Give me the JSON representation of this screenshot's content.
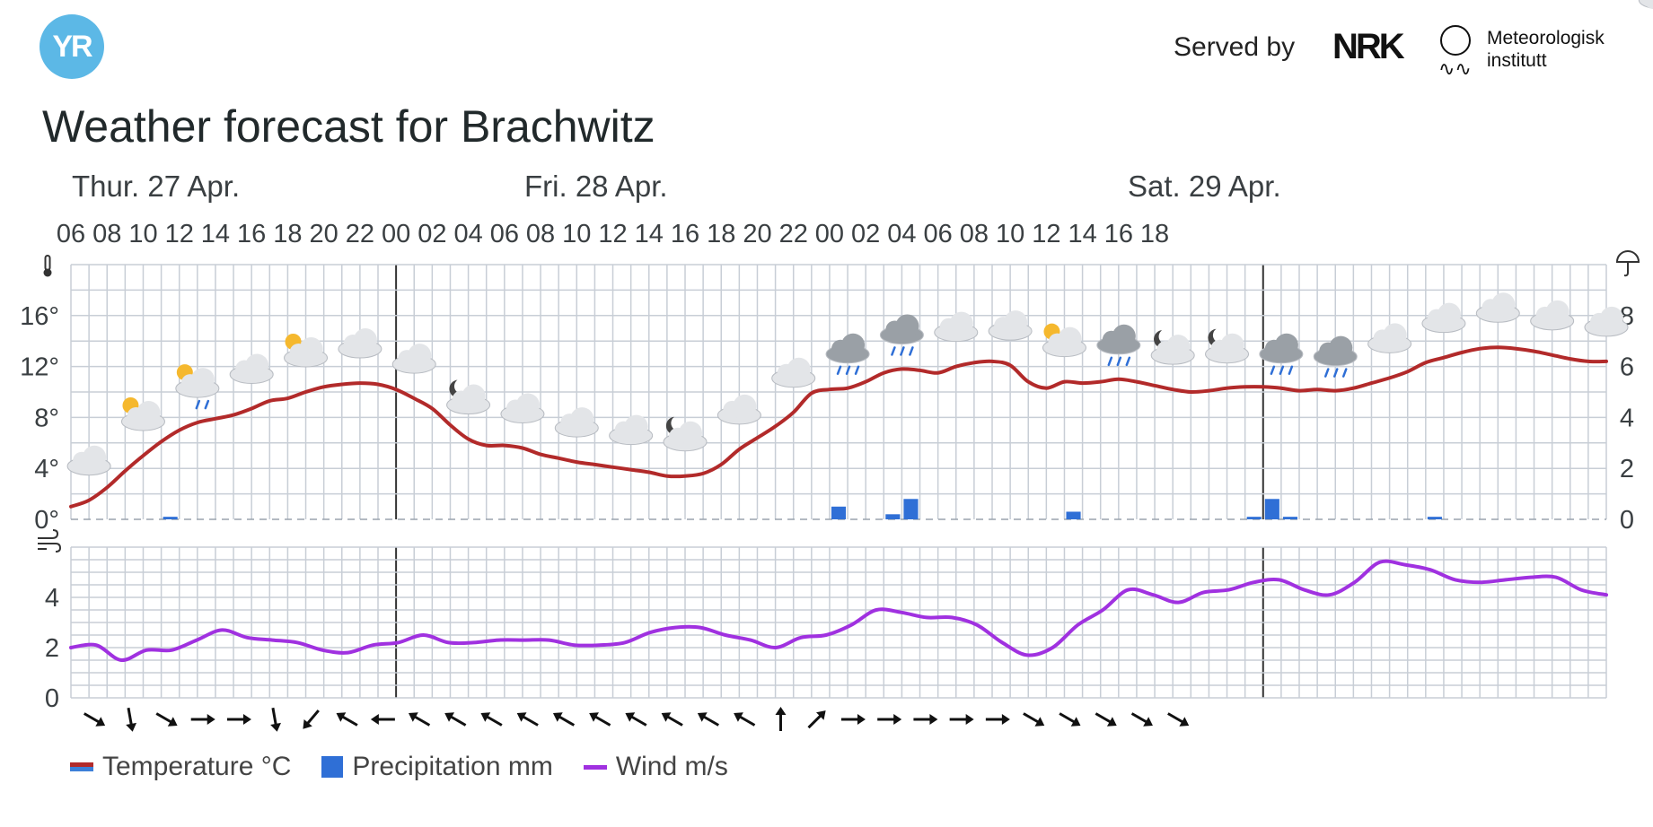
{
  "header": {
    "logo_text": "YR",
    "served_by": "Served by",
    "nrk_logo": "NRK",
    "met_name_line1": "Meteorologisk",
    "met_name_line2": "institutt",
    "title": "Weather forecast for Brachwitz"
  },
  "days": [
    "Thur. 27 Apr.",
    "Fri. 28 Apr.",
    "Sat. 29 Apr."
  ],
  "legend": {
    "temperature": "Temperature °C",
    "precipitation": "Precipitation mm",
    "wind": "Wind m/s"
  },
  "colors": {
    "temperature": "#b22a2a",
    "precipitation": "#2f6fd6",
    "wind": "#a031e0",
    "grid": "#c8ced6",
    "logo": "#5cb8e6"
  },
  "icons": {
    "temperature_axis": "thermometer-icon",
    "precipitation_axis": "umbrella-icon",
    "wind_axis": "wind-icon"
  },
  "chart_data": {
    "type": "line",
    "x_start": "Thur. 27 Apr. 06",
    "x_end": "Sat. 29 Apr. 19",
    "hour_tick_labels": [
      "06",
      "08",
      "10",
      "12",
      "14",
      "16",
      "18",
      "20",
      "22",
      "00",
      "02",
      "04",
      "06",
      "08",
      "10",
      "12",
      "14",
      "16",
      "18",
      "20",
      "22",
      "00",
      "02",
      "04",
      "06",
      "08",
      "10",
      "12",
      "14",
      "16",
      "18"
    ],
    "temperature": {
      "name": "Temperature °C",
      "ylim": [
        0,
        20
      ],
      "y_tick_labels": [
        "0°",
        "4°",
        "8°",
        "12°",
        "16°"
      ],
      "values": [
        1,
        1.5,
        2.5,
        3.8,
        5,
        6.1,
        7,
        7.6,
        7.9,
        8.2,
        8.7,
        9.3,
        9.5,
        10,
        10.4,
        10.6,
        10.7,
        10.6,
        10.2,
        9.5,
        8.7,
        7.4,
        6.3,
        5.8,
        5.8,
        5.6,
        5.1,
        4.8,
        4.5,
        4.3,
        4.1,
        3.9,
        3.7,
        3.4,
        3.4,
        3.6,
        4.3,
        5.5,
        6.4,
        7.3,
        8.4,
        9.9,
        10.2,
        10.3,
        10.8,
        11.5,
        11.8,
        11.7,
        11.5,
        12,
        12.3,
        12.4,
        12.1,
        10.8,
        10.3,
        10.8,
        10.7,
        10.8,
        11,
        10.8,
        10.5,
        10.2,
        10,
        10.1,
        10.3,
        10.4,
        10.4,
        10.3,
        10.1,
        10.2,
        10.1,
        10.3,
        10.7,
        11.1,
        11.6,
        12.3,
        12.7,
        13.1,
        13.4,
        13.5,
        13.4,
        13.2,
        12.9,
        12.6,
        12.4,
        12.4
      ]
    },
    "precipitation": {
      "name": "Precipitation mm",
      "ylim": [
        0,
        10
      ],
      "y_tick_labels": [
        "0",
        "2",
        "4",
        "6",
        "8"
      ],
      "values": [
        0,
        0,
        0,
        0,
        0,
        0.1,
        0,
        0,
        0,
        0,
        0,
        0,
        0,
        0,
        0,
        0,
        0,
        0,
        0,
        0,
        0,
        0,
        0,
        0,
        0,
        0,
        0,
        0,
        0,
        0,
        0,
        0,
        0,
        0,
        0,
        0,
        0,
        0,
        0,
        0,
        0,
        0,
        0.5,
        0,
        0,
        0.2,
        0.8,
        0,
        0,
        0,
        0,
        0,
        0,
        0,
        0,
        0.3,
        0,
        0,
        0,
        0,
        0,
        0,
        0,
        0,
        0,
        0.1,
        0.8,
        0.1,
        0,
        0,
        0,
        0,
        0,
        0,
        0,
        0.1,
        0,
        0,
        0,
        0,
        0,
        0,
        0,
        0,
        0,
        0
      ]
    },
    "wind": {
      "name": "Wind m/s",
      "ylim": [
        0,
        6
      ],
      "y_tick_labels": [
        "0",
        "2",
        "4"
      ],
      "values": [
        2,
        2.1,
        1.5,
        1.9,
        1.9,
        2.3,
        2.7,
        2.4,
        2.3,
        2.2,
        1.9,
        1.8,
        2.1,
        2.2,
        2.5,
        2.2,
        2.2,
        2.3,
        2.3,
        2.3,
        2.1,
        2.1,
        2.2,
        2.6,
        2.8,
        2.8,
        2.5,
        2.3,
        2,
        2.4,
        2.5,
        2.9,
        3.5,
        3.4,
        3.2,
        3.2,
        2.9,
        2.2,
        1.7,
        2,
        2.9,
        3.5,
        4.3,
        4.1,
        3.8,
        4.2,
        4.3,
        4.6,
        4.7,
        4.3,
        4.1,
        4.6,
        5.4,
        5.3,
        5.1,
        4.7,
        4.6,
        4.7,
        4.8,
        4.8,
        4.3,
        4.1
      ]
    },
    "wind_direction_icons": [
      "arrow-se",
      "arrow-s",
      "arrow-se",
      "arrow-e",
      "arrow-e",
      "arrow-s",
      "arrow-sw",
      "arrow-nw",
      "arrow-w",
      "arrow-nw",
      "arrow-nw",
      "arrow-nw",
      "arrow-nw",
      "arrow-nw",
      "arrow-nw",
      "arrow-nw",
      "arrow-nw",
      "arrow-nw",
      "arrow-nw",
      "arrow-n",
      "arrow-ne",
      "arrow-e",
      "arrow-e",
      "arrow-e",
      "arrow-e",
      "arrow-e",
      "arrow-se",
      "arrow-se",
      "arrow-se",
      "arrow-se",
      "arrow-se"
    ],
    "weather_icons": [
      "cloud",
      "partly-sunny",
      "rain-sun",
      "cloud",
      "partly-sunny",
      "cloud",
      "cloud",
      "night-cloud",
      "cloud",
      "cloud",
      "cloud",
      "night-cloud",
      "cloud",
      "cloud",
      "rain-cloud",
      "rain-cloud",
      "cloud",
      "cloud",
      "partly-sunny",
      "rain-cloud",
      "night-cloud",
      "night-cloud",
      "rain-cloud",
      "rain-cloud",
      "cloud",
      "cloud",
      "cloud",
      "cloud",
      "cloud",
      "cloud"
    ],
    "grid": true,
    "legend_position": "bottom-left"
  }
}
